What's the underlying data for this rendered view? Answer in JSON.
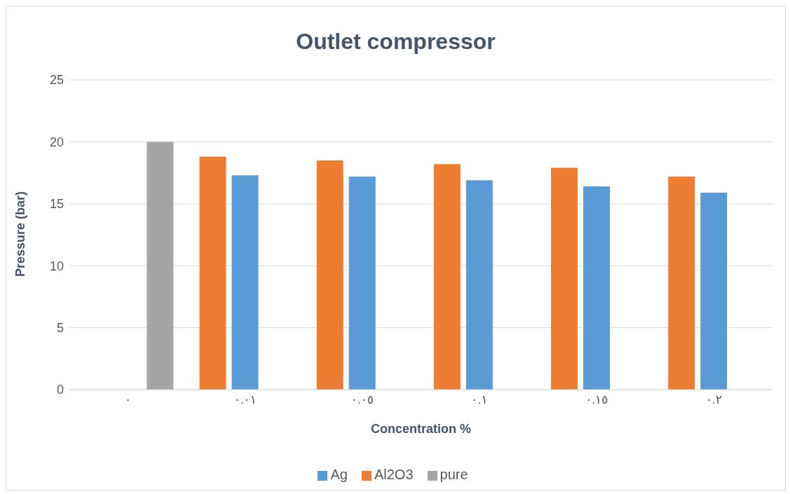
{
  "chart_data": {
    "type": "bar",
    "title": "Outlet compressor",
    "xlabel": "Concentration %",
    "ylabel": "Pressure (bar)",
    "categories": [
      "٠",
      "٠.٠١",
      "٠.٠٥",
      "٠.١",
      "٠.١٥",
      "٠.٢"
    ],
    "series": [
      {
        "name": "Al2O3",
        "color": "#ed7d31",
        "values": [
          null,
          18.8,
          18.5,
          18.2,
          17.9,
          17.2
        ]
      },
      {
        "name": "Ag",
        "color": "#5b9bd5",
        "values": [
          null,
          17.3,
          17.2,
          16.9,
          16.4,
          15.9
        ]
      },
      {
        "name": "pure",
        "color": "#a5a5a5",
        "values": [
          20,
          null,
          null,
          null,
          null,
          null
        ]
      }
    ],
    "ylim": [
      0,
      25
    ],
    "yticks": [
      0,
      5,
      10,
      15,
      20,
      25
    ],
    "grid": "y",
    "legend": "bottom"
  }
}
